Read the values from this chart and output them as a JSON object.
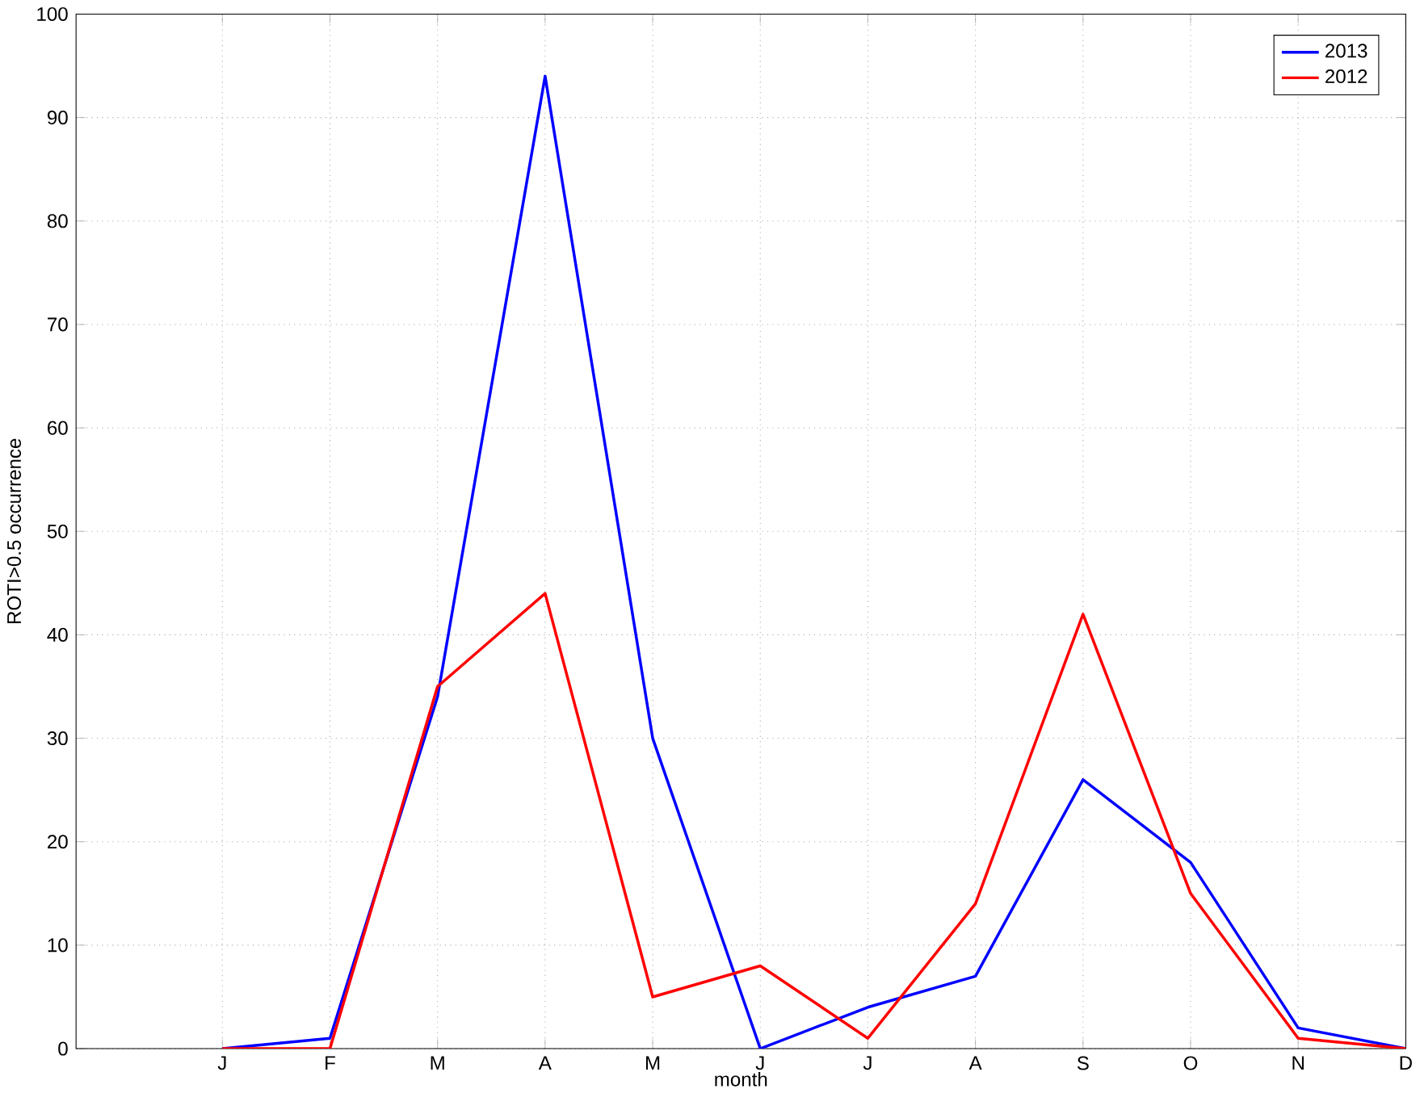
{
  "chart_data": {
    "type": "line",
    "xlabel": "month",
    "ylabel": "ROTI>0.5 occurrence",
    "categories": [
      "J",
      "F",
      "M",
      "A",
      "M",
      "J",
      "J",
      "A",
      "S",
      "O",
      "N",
      "D"
    ],
    "series": [
      {
        "name": "2013",
        "color": "#0000ff",
        "values": [
          0,
          1,
          34,
          94,
          30,
          0,
          4,
          7,
          26,
          18,
          2,
          0
        ]
      },
      {
        "name": "2012",
        "color": "#ff0000",
        "values": [
          0,
          0,
          35,
          44,
          5,
          8,
          1,
          14,
          42,
          15,
          1,
          0
        ]
      }
    ],
    "ylim": [
      0,
      100
    ],
    "yticks": [
      0,
      10,
      20,
      30,
      40,
      50,
      60,
      70,
      80,
      90,
      100
    ],
    "grid": true,
    "legend": "top right",
    "marker": "none",
    "line_style": "solid"
  }
}
